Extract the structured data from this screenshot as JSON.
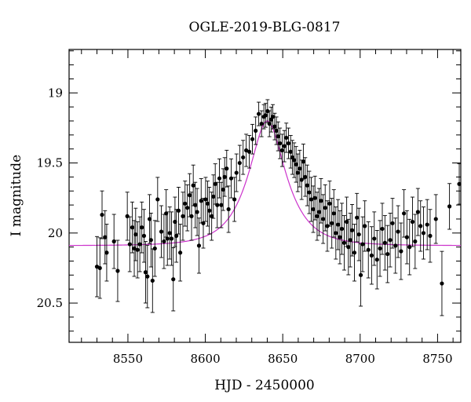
{
  "chart_data": {
    "type": "scatter",
    "title": "OGLE-2019-BLG-0817",
    "xlabel": "HJD - 2450000",
    "ylabel": "I magnitude",
    "xlim": [
      8512,
      8765
    ],
    "ylim": [
      20.78,
      18.69
    ],
    "y_inverted": true,
    "grid": false,
    "x_major_ticks": [
      8550,
      8600,
      8650,
      8700,
      8750
    ],
    "x_tick_labels": [
      "8550",
      "8600",
      "8650",
      "8700",
      "8750"
    ],
    "x_minor_step": 10,
    "y_major_ticks": [
      19.0,
      19.5,
      20.0,
      20.5
    ],
    "y_tick_labels": [
      "19",
      "19.5",
      "20",
      "20.5"
    ],
    "y_minor_step": 0.1,
    "colors": {
      "points": "#000000",
      "model": "#cc33cc"
    },
    "model": {
      "name": "",
      "type": "point-lens fit",
      "t0": 8640.0,
      "tE": 20.5,
      "u0": 0.5,
      "baseline_mag": 20.09,
      "peak_mag": 19.2
    },
    "series": [
      {
        "name": "",
        "x": [
          8530.0,
          8531.9,
          8533.3,
          8535.2,
          8536.3,
          8541.0,
          8543.4,
          8549.6,
          8551.2,
          8552.8,
          8554.1,
          8555.0,
          8556.2,
          8557.7,
          8559.0,
          8560.4,
          8561.4,
          8562.6,
          8564.0,
          8564.9,
          8565.9,
          8567.4,
          8569.2,
          8571.6,
          8573.3,
          8574.7,
          8575.5,
          8577.0,
          8578.2,
          8579.3,
          8580.4,
          8581.3,
          8582.7,
          8583.8,
          8585.5,
          8586.9,
          8588.4,
          8589.9,
          8591.1,
          8592.2,
          8593.5,
          8594.7,
          8595.9,
          8597.3,
          8598.7,
          8600.2,
          8601.5,
          8602.6,
          8604.1,
          8605.2,
          8606.4,
          8607.7,
          8609.1,
          8610.3,
          8611.5,
          8612.5,
          8613.8,
          8615.0,
          8616.7,
          8618.8,
          8620.1,
          8622.2,
          8624.4,
          8626.4,
          8628.4,
          8630.4,
          8632.5,
          8634.5,
          8636.3,
          8637.8,
          8638.9,
          8640.2,
          8641.4,
          8642.5,
          8643.6,
          8644.8,
          8645.9,
          8647.0,
          8648.2,
          8649.6,
          8651.0,
          8652.3,
          8653.7,
          8655.1,
          8656.2,
          8657.4,
          8658.6,
          8659.7,
          8661.0,
          8662.2,
          8663.3,
          8664.5,
          8665.8,
          8667.1,
          8668.4,
          8669.7,
          8670.8,
          8672.2,
          8673.5,
          8674.7,
          8676.1,
          8677.4,
          8678.8,
          8680.3,
          8681.7,
          8683.0,
          8684.3,
          8685.7,
          8686.9,
          8688.2,
          8689.7,
          8691.3,
          8692.4,
          8693.6,
          8694.8,
          8696.3,
          8697.9,
          8699.2,
          8700.4,
          8701.6,
          8703.0,
          8705.3,
          8707.4,
          8709.1,
          8710.9,
          8712.8,
          8714.3,
          8716.0,
          8717.7,
          8719.4,
          8720.9,
          8722.8,
          8724.5,
          8726.4,
          8728.3,
          8730.2,
          8731.9,
          8733.8,
          8735.5,
          8737.3,
          8739.0,
          8740.9,
          8743.3,
          8745.2,
          8748.9,
          8752.8,
          8757.7,
          8764.0
        ],
        "y": [
          20.24,
          20.25,
          19.87,
          20.03,
          20.14,
          20.06,
          20.27,
          19.88,
          20.08,
          19.96,
          20.11,
          20.01,
          20.12,
          20.08,
          19.96,
          20.02,
          20.28,
          20.31,
          19.9,
          20.05,
          20.34,
          20.11,
          19.76,
          19.99,
          20.06,
          19.86,
          20.04,
          20.0,
          20.04,
          20.33,
          19.92,
          20.02,
          19.84,
          20.14,
          19.88,
          19.79,
          19.82,
          19.73,
          19.88,
          19.66,
          19.8,
          19.85,
          20.09,
          19.77,
          19.93,
          19.76,
          19.79,
          19.84,
          19.88,
          19.74,
          19.65,
          19.8,
          19.61,
          19.8,
          19.69,
          19.6,
          19.54,
          19.83,
          19.61,
          19.76,
          19.57,
          19.5,
          19.46,
          19.41,
          19.42,
          19.33,
          19.27,
          19.15,
          19.22,
          19.17,
          19.16,
          19.13,
          19.22,
          19.19,
          19.17,
          19.24,
          19.27,
          19.31,
          19.36,
          19.41,
          19.38,
          19.32,
          19.36,
          19.42,
          19.46,
          19.48,
          19.51,
          19.57,
          19.54,
          19.62,
          19.49,
          19.6,
          19.66,
          19.71,
          19.76,
          19.83,
          19.75,
          19.88,
          19.85,
          19.77,
          19.9,
          19.82,
          19.95,
          19.79,
          19.93,
          19.86,
          20.0,
          19.94,
          20.03,
          19.97,
          20.07,
          19.92,
          20.1,
          20.05,
          19.98,
          20.14,
          19.89,
          20.01,
          20.3,
          20.08,
          19.95,
          20.12,
          20.16,
          20.04,
          20.19,
          20.11,
          19.97,
          20.07,
          20.15,
          20.05,
          19.93,
          20.09,
          19.99,
          20.13,
          19.86,
          20.03,
          20.1,
          19.92,
          20.06,
          19.85,
          19.95,
          20.0,
          19.94,
          20.02,
          19.9,
          20.36,
          19.81,
          19.65
        ]
      }
    ]
  }
}
